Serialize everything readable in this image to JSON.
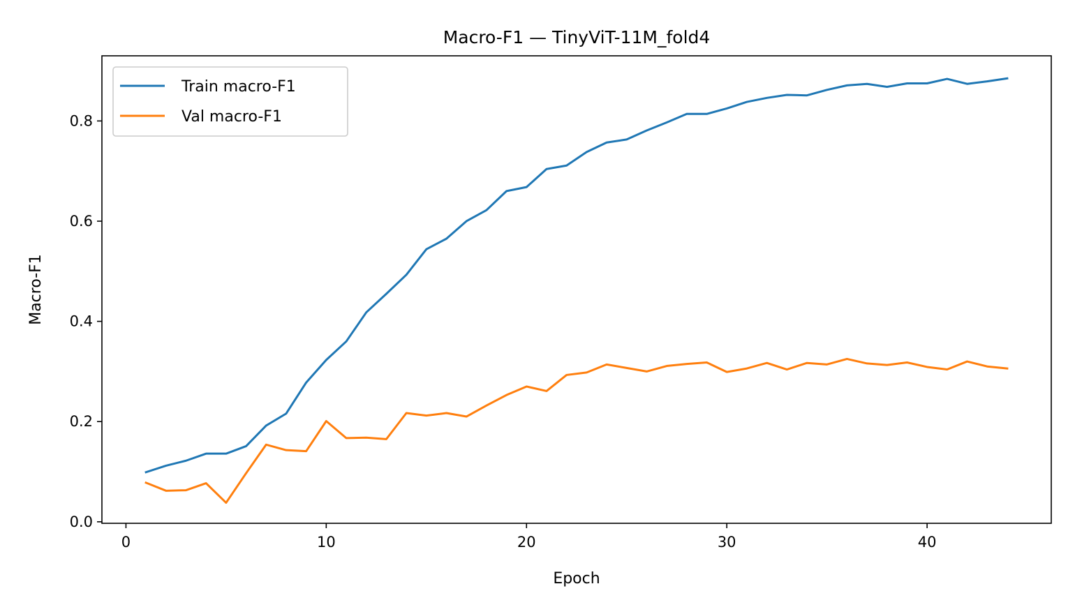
{
  "chart_data": {
    "type": "line",
    "title": "Macro-F1 — TinyViT-11M_fold4",
    "xlabel": "Epoch",
    "ylabel": "Macro-F1",
    "xlim": [
      -1.2,
      46.2
    ],
    "ylim": [
      -0.003,
      0.93
    ],
    "xticks": [
      0,
      10,
      20,
      30,
      40
    ],
    "xtick_labels": [
      "0",
      "10",
      "20",
      "30",
      "40"
    ],
    "yticks": [
      0.0,
      0.2,
      0.4,
      0.6,
      0.8
    ],
    "ytick_labels": [
      "0.0",
      "0.2",
      "0.4",
      "0.6",
      "0.8"
    ],
    "grid": false,
    "legend_position": "upper-left",
    "x": [
      1,
      2,
      3,
      4,
      5,
      6,
      7,
      8,
      9,
      10,
      11,
      12,
      13,
      14,
      15,
      16,
      17,
      18,
      19,
      20,
      21,
      22,
      23,
      24,
      25,
      26,
      27,
      28,
      29,
      30,
      31,
      32,
      33,
      34,
      35,
      36,
      37,
      38,
      39,
      40,
      41,
      42,
      43,
      44
    ],
    "series": [
      {
        "name": "Train macro-F1",
        "color": "#1f77b4",
        "values": [
          0.099,
          0.112,
          0.122,
          0.136,
          0.136,
          0.151,
          0.192,
          0.216,
          0.278,
          0.323,
          0.36,
          0.418,
          0.455,
          0.493,
          0.544,
          0.565,
          0.6,
          0.622,
          0.66,
          0.668,
          0.704,
          0.711,
          0.738,
          0.757,
          0.763,
          0.781,
          0.797,
          0.814,
          0.814,
          0.825,
          0.838,
          0.846,
          0.852,
          0.851,
          0.862,
          0.871,
          0.874,
          0.868,
          0.875,
          0.875,
          0.884,
          0.874,
          0.879,
          0.885
        ]
      },
      {
        "name": "Val macro-F1",
        "color": "#ff7f0e",
        "values": [
          0.078,
          0.062,
          0.063,
          0.077,
          0.038,
          0.097,
          0.154,
          0.143,
          0.141,
          0.201,
          0.167,
          0.168,
          0.165,
          0.217,
          0.212,
          0.217,
          0.21,
          0.232,
          0.253,
          0.27,
          0.261,
          0.293,
          0.298,
          0.314,
          0.307,
          0.3,
          0.311,
          0.315,
          0.318,
          0.299,
          0.306,
          0.317,
          0.304,
          0.317,
          0.314,
          0.325,
          0.316,
          0.313,
          0.318,
          0.309,
          0.304,
          0.32,
          0.31,
          0.306
        ]
      }
    ]
  }
}
